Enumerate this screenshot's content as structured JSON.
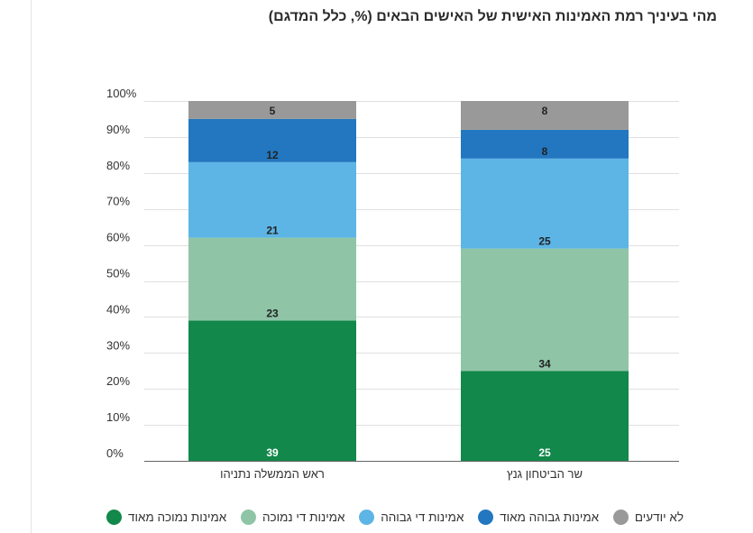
{
  "title": "מהי בעיניך רמת האמינות האישית של האישים הבאים (%, כלל המדגם)",
  "chart_data": {
    "type": "bar",
    "stacked": true,
    "categories": [
      "ראש הממשלה נתניהו",
      "שר הביטחון גנץ"
    ],
    "series": [
      {
        "name": "אמינות נמוכה מאוד",
        "color": "#12884a",
        "values": [
          39,
          25
        ]
      },
      {
        "name": "אמינות די נמוכה",
        "color": "#8fc5a6",
        "values": [
          23,
          34
        ]
      },
      {
        "name": "אמינות די גבוהה",
        "color": "#5db5e5",
        "values": [
          21,
          25
        ]
      },
      {
        "name": "אמינות גבוהה מאוד",
        "color": "#2277c0",
        "values": [
          12,
          8
        ]
      },
      {
        "name": "לא יודעים",
        "color": "#999999",
        "values": [
          5,
          8
        ]
      }
    ],
    "ylim": [
      0,
      100
    ],
    "yticks": [
      "0%",
      "10%",
      "20%",
      "30%",
      "40%",
      "50%",
      "60%",
      "70%",
      "80%",
      "90%",
      "100%"
    ],
    "grid": true,
    "legend_position": "bottom"
  }
}
